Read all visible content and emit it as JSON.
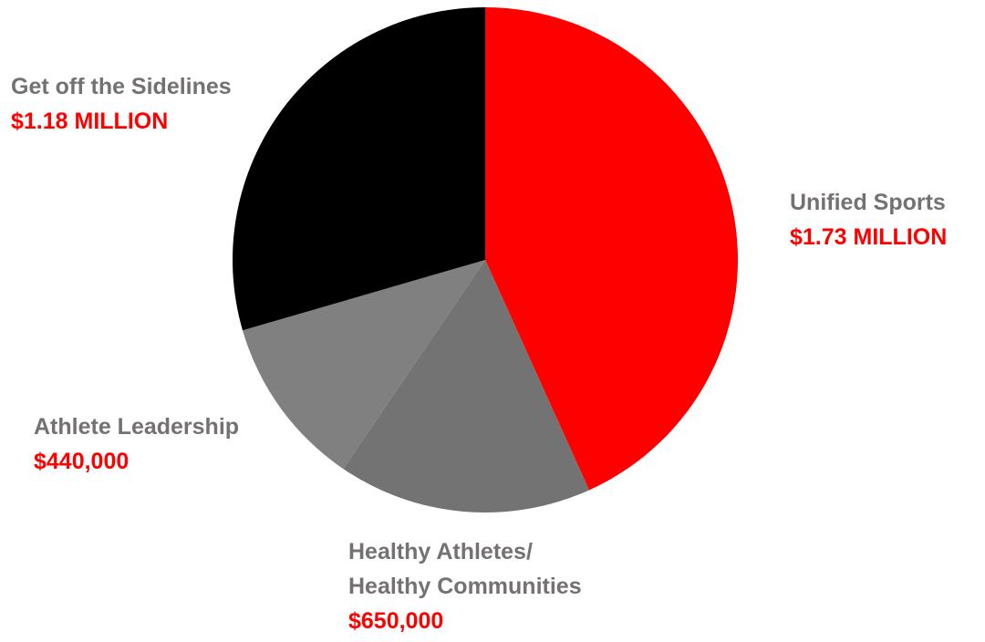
{
  "chart_data": {
    "type": "pie",
    "title": "",
    "slices": [
      {
        "label": "Unified Sports",
        "value_text": "$1.73 MILLION",
        "value": 1730000,
        "color": "#ff0000"
      },
      {
        "label_lines": [
          "Healthy Athletes/",
          "Healthy Communities"
        ],
        "value_text": "$650,000",
        "value": 650000,
        "color": "#737373"
      },
      {
        "label": "Athlete Leadership",
        "value_text": "$440,000",
        "value": 440000,
        "color": "#808080"
      },
      {
        "label": "Get off the Sidelines",
        "value_text": "$1.18 MILLION",
        "value": 1180000,
        "color": "#000000"
      }
    ]
  },
  "labels": {
    "get_off_sidelines": {
      "name": "Get off the Sidelines",
      "value": "$1.18 MILLION"
    },
    "unified_sports": {
      "name": "Unified Sports",
      "value": "$1.73 MILLION"
    },
    "athlete_leadership": {
      "name": "Athlete Leadership",
      "value": "$440,000"
    },
    "healthy_athletes": {
      "name_line1": "Healthy Athletes/",
      "name_line2": "Healthy Communities",
      "value": "$650,000"
    }
  }
}
